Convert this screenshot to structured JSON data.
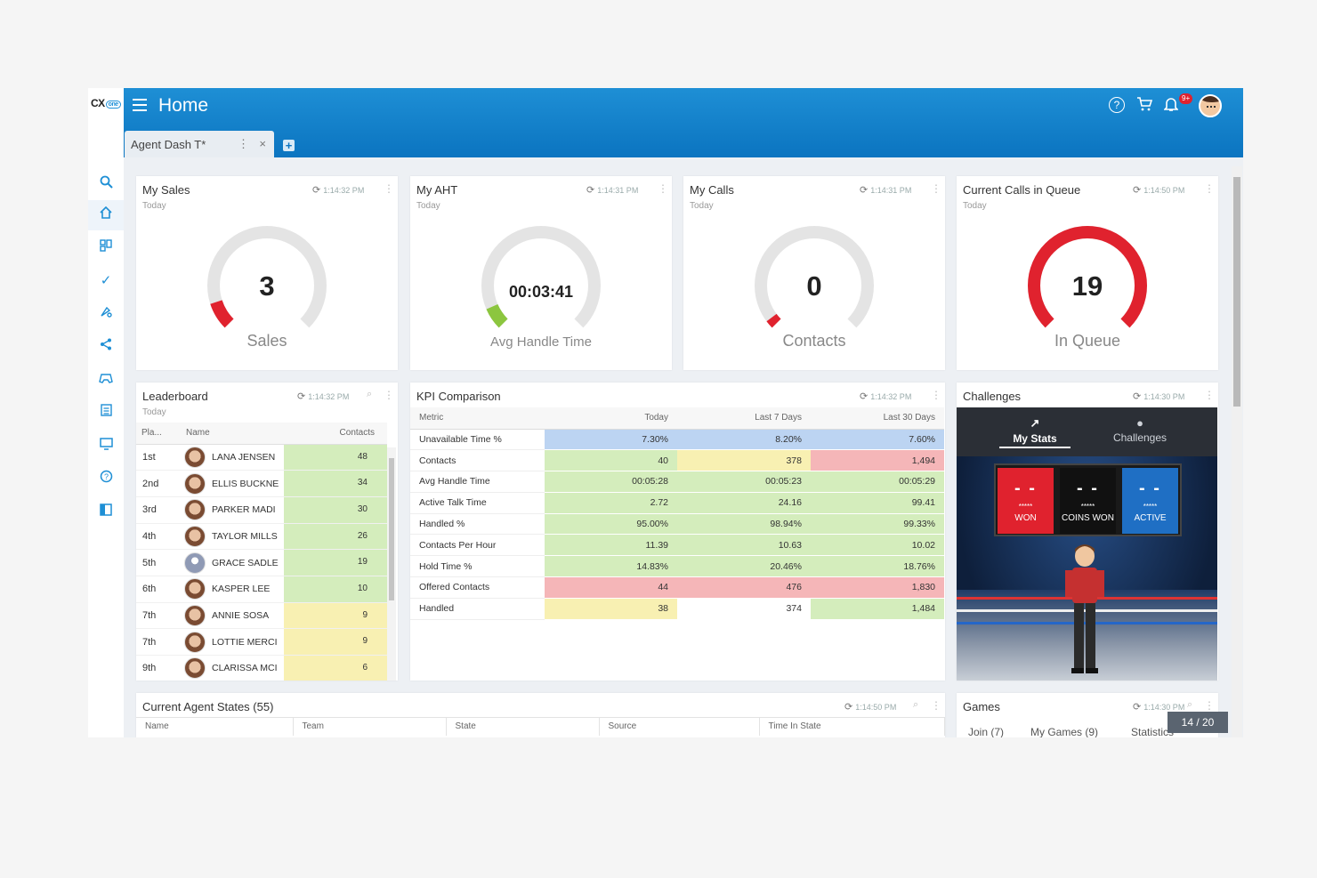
{
  "brand": {
    "logo": "CX",
    "logo_badge": "one"
  },
  "header": {
    "menu_icon": "hamburger-icon",
    "title": "Home",
    "badge": "9+"
  },
  "tabs": [
    {
      "label": "Agent Dash T*"
    }
  ],
  "sidebar": {
    "items": [
      "search-icon",
      "home-icon",
      "dashboard-icon",
      "check-icon",
      "tools-icon",
      "share-icon",
      "gamepad-icon",
      "clipboard-icon",
      "monitor-icon",
      "help-icon",
      "panel-icon"
    ]
  },
  "widgets": {
    "my_sales": {
      "title": "My Sales",
      "subtitle": "Today",
      "time": "1:14:32 PM",
      "value": "3",
      "label": "Sales",
      "level": 0.1
    },
    "my_aht": {
      "title": "My AHT",
      "subtitle": "Today",
      "time": "1:14:31 PM",
      "value": "00:03:41",
      "label": "Avg Handle Time",
      "level": 0.08
    },
    "my_calls": {
      "title": "My Calls",
      "subtitle": "Today",
      "time": "1:14:31 PM",
      "value": "0",
      "label": "Contacts",
      "level": 0.03
    },
    "queue": {
      "title": "Current Calls in Queue",
      "subtitle": "Today",
      "time": "1:14:50 PM",
      "value": "19",
      "label": "In Queue",
      "level": 1.0
    }
  },
  "leaderboard": {
    "title": "Leaderboard",
    "subtitle": "Today",
    "time": "1:14:32 PM",
    "columns": [
      "Pla...",
      "Name",
      "Contacts"
    ],
    "rows": [
      {
        "place": "1st",
        "name": "LANA JENSEN",
        "contacts": "48",
        "color": "green"
      },
      {
        "place": "2nd",
        "name": "ELLIS BUCKNE",
        "contacts": "34",
        "color": "green"
      },
      {
        "place": "3rd",
        "name": "PARKER MADI",
        "contacts": "30",
        "color": "green"
      },
      {
        "place": "4th",
        "name": "TAYLOR MILLS",
        "contacts": "26",
        "color": "green"
      },
      {
        "place": "5th",
        "name": "GRACE SADLE",
        "contacts": "19",
        "color": "green",
        "placeholder": true
      },
      {
        "place": "6th",
        "name": "KASPER LEE",
        "contacts": "10",
        "color": "green"
      },
      {
        "place": "7th",
        "name": "ANNIE SOSA",
        "contacts": "9",
        "color": "yellow"
      },
      {
        "place": "7th",
        "name": "LOTTIE MERCI",
        "contacts": "9",
        "color": "yellow"
      },
      {
        "place": "9th",
        "name": "CLARISSA MCI",
        "contacts": "6",
        "color": "yellow"
      }
    ]
  },
  "kpi": {
    "title": "KPI Comparison",
    "time": "1:14:32 PM",
    "columns": [
      "Metric",
      "Today",
      "Last 7 Days",
      "Last 30 Days"
    ],
    "rows": [
      {
        "metric": "Unavailable Time %",
        "values": [
          "7.30%",
          "8.20%",
          "7.60%"
        ],
        "colors": [
          "blue",
          "blue",
          "blue"
        ]
      },
      {
        "metric": "Contacts",
        "values": [
          "40",
          "378",
          "1,494"
        ],
        "colors": [
          "green",
          "yellow",
          "red"
        ]
      },
      {
        "metric": "Avg Handle Time",
        "values": [
          "00:05:28",
          "00:05:23",
          "00:05:29"
        ],
        "colors": [
          "green",
          "green",
          "green"
        ]
      },
      {
        "metric": "Active Talk Time",
        "values": [
          "2.72",
          "24.16",
          "99.41"
        ],
        "colors": [
          "green",
          "green",
          "green"
        ]
      },
      {
        "metric": "Handled %",
        "values": [
          "95.00%",
          "98.94%",
          "99.33%"
        ],
        "colors": [
          "green",
          "green",
          "green"
        ]
      },
      {
        "metric": "Contacts Per Hour",
        "values": [
          "11.39",
          "10.63",
          "10.02"
        ],
        "colors": [
          "green",
          "green",
          "green"
        ]
      },
      {
        "metric": "Hold Time %",
        "values": [
          "14.83%",
          "20.46%",
          "18.76%"
        ],
        "colors": [
          "green",
          "green",
          "green"
        ]
      },
      {
        "metric": "Offered Contacts",
        "values": [
          "44",
          "476",
          "1,830"
        ],
        "colors": [
          "red",
          "red",
          "red"
        ]
      },
      {
        "metric": "Handled",
        "values": [
          "38",
          "374",
          "1,484"
        ],
        "colors": [
          "yellow",
          "white",
          "green"
        ]
      }
    ]
  },
  "challenges": {
    "title": "Challenges",
    "time": "1:14:30 PM",
    "tabs": [
      "My Stats",
      "Challenges"
    ],
    "scoreboard": [
      {
        "value": "- -",
        "stars": "*****",
        "label": "WON"
      },
      {
        "value": "- -",
        "stars": "*****",
        "label": "COINS WON"
      },
      {
        "value": "- -",
        "stars": "*****",
        "label": "ACTIVE"
      }
    ]
  },
  "agent_states": {
    "title": "Current Agent States (55)",
    "time": "1:14:50 PM",
    "columns": [
      "Name",
      "Team",
      "State",
      "Source",
      "Time In State"
    ]
  },
  "games": {
    "title": "Games",
    "time": "1:14:30 PM",
    "tabs": [
      "Join (7)",
      "My Games (9)",
      "Statistics"
    ]
  },
  "pagination": "14 / 20",
  "colors": {
    "header": "#0b74c0",
    "accent": "#1e8fd5",
    "red": "#e0222e",
    "green": "#8cc63f"
  }
}
